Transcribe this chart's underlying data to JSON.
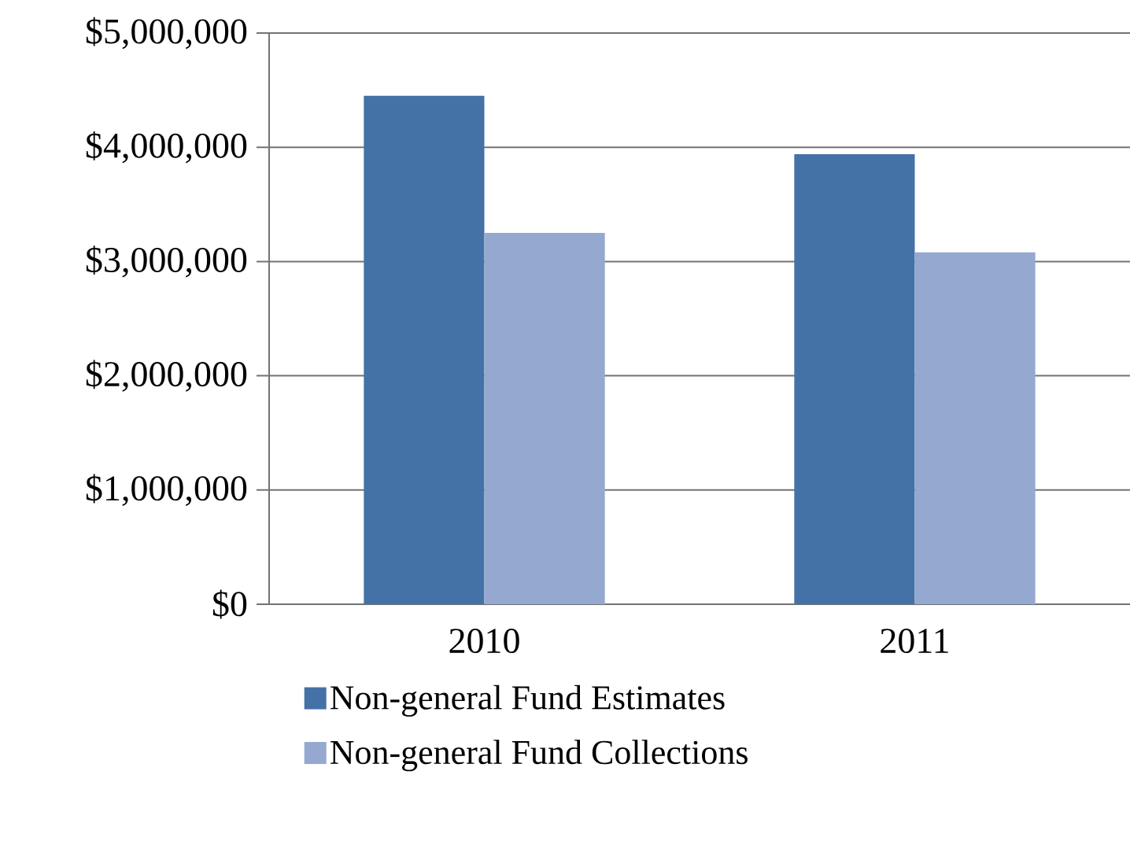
{
  "chart_data": {
    "type": "bar",
    "categories": [
      "2010",
      "2011"
    ],
    "series": [
      {
        "name": "Non-general Fund Estimates",
        "color": "#4472a7",
        "values": [
          4450000,
          3940000
        ]
      },
      {
        "name": "Non-general Fund Collections",
        "color": "#95a9d0",
        "values": [
          3250000,
          3080000
        ]
      }
    ],
    "ylim": [
      0,
      5000000
    ],
    "yticks": [
      {
        "value": 0,
        "label": "$0"
      },
      {
        "value": 1000000,
        "label": "$1,000,000"
      },
      {
        "value": 2000000,
        "label": "$2,000,000"
      },
      {
        "value": 3000000,
        "label": "$3,000,000"
      },
      {
        "value": 4000000,
        "label": "$4,000,000"
      },
      {
        "value": 5000000,
        "label": "$5,000,000"
      }
    ],
    "grid": "y",
    "legend": "bottom"
  }
}
